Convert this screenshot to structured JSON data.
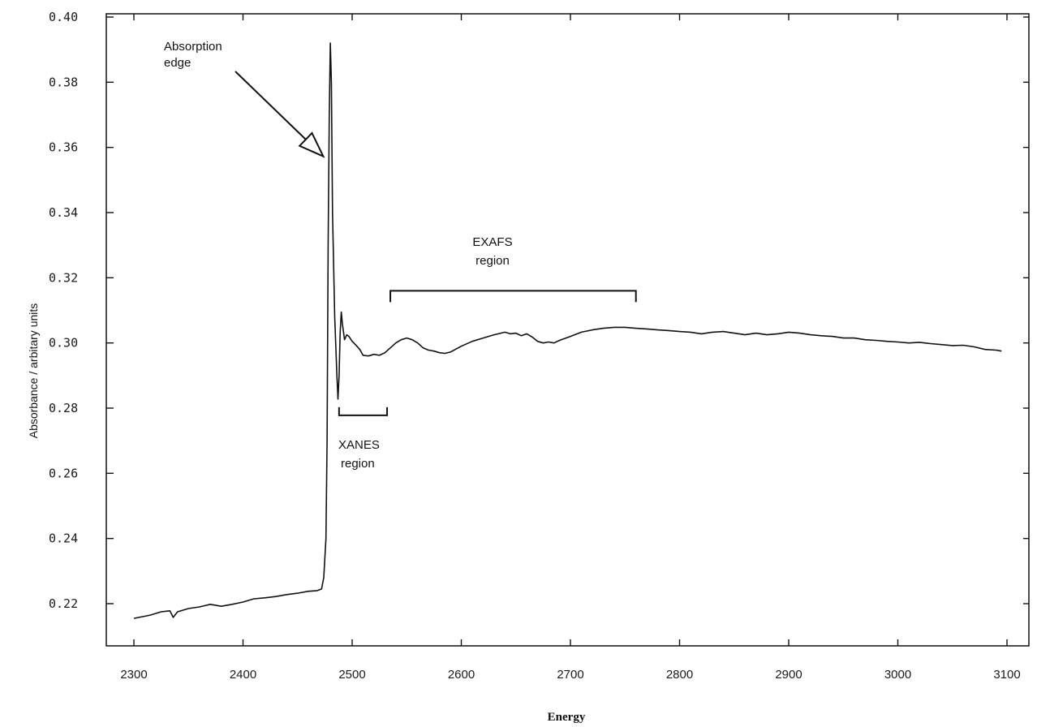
{
  "chart_data": {
    "type": "line",
    "title": "",
    "xlabel": "Energy",
    "ylabel": "Absorbance / arbitary units",
    "xlim": [
      2275,
      3110
    ],
    "ylim": [
      0.207,
      0.4
    ],
    "x_ticks": [
      2300,
      2400,
      2500,
      2600,
      2700,
      2800,
      2900,
      3000,
      3100
    ],
    "y_ticks": [
      0.22,
      0.24,
      0.26,
      0.28,
      0.3,
      0.32,
      0.34,
      0.36,
      0.38,
      0.4
    ],
    "x_tick_labels": [
      "2300",
      "2400",
      "2500",
      "2600",
      "2700",
      "2800",
      "2900",
      "3000",
      "3100"
    ],
    "y_tick_labels": [
      "0.22",
      "0.24",
      "0.26",
      "0.28",
      "0.30",
      "0.32",
      "0.34",
      "0.36",
      "0.38",
      "0.40"
    ],
    "grid": false,
    "legend": "none",
    "series": [
      {
        "color": "#111111",
        "x": [
          2300,
          2315,
          2325,
          2333,
          2336,
          2340,
          2350,
          2360,
          2370,
          2380,
          2390,
          2400,
          2410,
          2420,
          2430,
          2440,
          2450,
          2460,
          2468,
          2472,
          2474,
          2476,
          2477,
          2478,
          2479,
          2480,
          2481,
          2482,
          2484,
          2486,
          2487,
          2488,
          2489,
          2490,
          2491,
          2493,
          2495,
          2497,
          2500,
          2503,
          2507,
          2510,
          2515,
          2520,
          2525,
          2530,
          2535,
          2540,
          2545,
          2550,
          2555,
          2560,
          2565,
          2570,
          2575,
          2580,
          2585,
          2590,
          2600,
          2610,
          2620,
          2630,
          2640,
          2645,
          2650,
          2655,
          2660,
          2665,
          2670,
          2675,
          2680,
          2685,
          2690,
          2700,
          2710,
          2720,
          2730,
          2740,
          2750,
          2760,
          2770,
          2780,
          2790,
          2800,
          2810,
          2820,
          2830,
          2840,
          2850,
          2860,
          2870,
          2880,
          2890,
          2900,
          2910,
          2920,
          2930,
          2940,
          2950,
          2960,
          2970,
          2980,
          2990,
          3000,
          3010,
          3020,
          3030,
          3040,
          3050,
          3060,
          3070,
          3080,
          3090,
          3095
        ],
        "y": [
          0.2155,
          0.2165,
          0.2175,
          0.2178,
          0.2158,
          0.2175,
          0.2185,
          0.219,
          0.2198,
          0.2192,
          0.2198,
          0.2205,
          0.2215,
          0.2218,
          0.2222,
          0.2228,
          0.2232,
          0.2238,
          0.224,
          0.2245,
          0.228,
          0.24,
          0.27,
          0.33,
          0.37,
          0.392,
          0.38,
          0.34,
          0.308,
          0.29,
          0.2828,
          0.29,
          0.303,
          0.3095,
          0.306,
          0.301,
          0.3025,
          0.302,
          0.3005,
          0.2995,
          0.298,
          0.2962,
          0.296,
          0.2965,
          0.2962,
          0.297,
          0.2985,
          0.3,
          0.301,
          0.3015,
          0.301,
          0.3,
          0.2985,
          0.2978,
          0.2975,
          0.297,
          0.2968,
          0.2972,
          0.299,
          0.3005,
          0.3015,
          0.3025,
          0.3033,
          0.3028,
          0.303,
          0.3022,
          0.3028,
          0.3018,
          0.3005,
          0.3,
          0.3003,
          0.3,
          0.3008,
          0.302,
          0.3033,
          0.304,
          0.3045,
          0.3048,
          0.3048,
          0.3045,
          0.3043,
          0.304,
          0.3038,
          0.3035,
          0.3033,
          0.3028,
          0.3033,
          0.3035,
          0.303,
          0.3025,
          0.303,
          0.3025,
          0.3028,
          0.3033,
          0.303,
          0.3025,
          0.3022,
          0.302,
          0.3015,
          0.3015,
          0.301,
          0.3008,
          0.3005,
          0.3003,
          0.3,
          0.3002,
          0.2998,
          0.2995,
          0.2992,
          0.2993,
          0.2988,
          0.298,
          0.2978,
          0.2975
        ]
      }
    ],
    "annotations": {
      "absorption_edge": {
        "text_line1": "Absorption",
        "text_line2": "edge",
        "arrow_target": {
          "x": 2478,
          "y": 0.357
        }
      },
      "exafs": {
        "text_line1": "EXAFS",
        "text_line2": "region",
        "bracket_x": [
          2535,
          2760
        ],
        "bracket_y": 0.316
      },
      "xanes": {
        "text_line1": "XANES",
        "text_line2": "region",
        "bracket_x": [
          2488,
          2532
        ],
        "bracket_y": 0.2778
      }
    }
  }
}
